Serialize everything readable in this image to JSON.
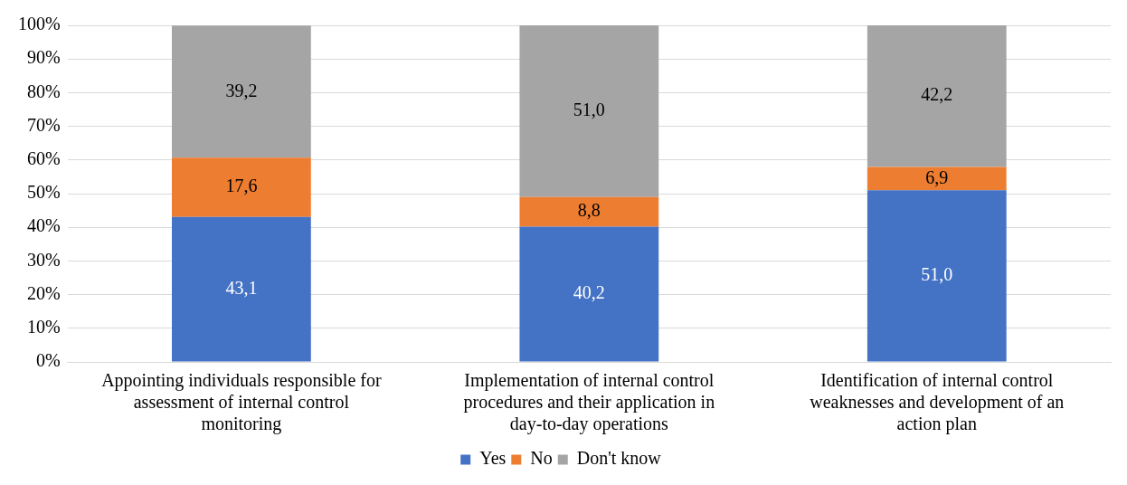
{
  "chart_data": {
    "type": "bar",
    "stacked": true,
    "categories": [
      "Appointing individuals responsible for assessment of internal control monitoring",
      "Implementation of internal control procedures and their application in day-to-day operations",
      "Identification of internal control weaknesses and development of an action plan"
    ],
    "series": [
      {
        "name": "Yes",
        "color": "#4472c4",
        "values": [
          43.1,
          40.2,
          51.0
        ],
        "value_labels": [
          "43,1",
          "40,2",
          "51,0"
        ]
      },
      {
        "name": "No",
        "color": "#ed7d31",
        "values": [
          17.6,
          8.8,
          6.9
        ],
        "value_labels": [
          "17,6",
          "8,8",
          "6,9"
        ]
      },
      {
        "name": "Don't know",
        "color": "#a5a5a5",
        "values": [
          39.2,
          51.0,
          42.2
        ],
        "value_labels": [
          "39,2",
          "51,0",
          "42,2"
        ]
      }
    ],
    "ylim": [
      0,
      100
    ],
    "yticks": [
      {
        "value": 0,
        "label": "0%"
      },
      {
        "value": 10,
        "label": "10%"
      },
      {
        "value": 20,
        "label": "20%"
      },
      {
        "value": 30,
        "label": "30%"
      },
      {
        "value": 40,
        "label": "40%"
      },
      {
        "value": 50,
        "label": "50%"
      },
      {
        "value": 60,
        "label": "60%"
      },
      {
        "value": 70,
        "label": "70%"
      },
      {
        "value": 80,
        "label": "80%"
      },
      {
        "value": 90,
        "label": "90%"
      },
      {
        "value": 100,
        "label": "100%"
      }
    ],
    "grid": "y",
    "legend": "bottom"
  }
}
